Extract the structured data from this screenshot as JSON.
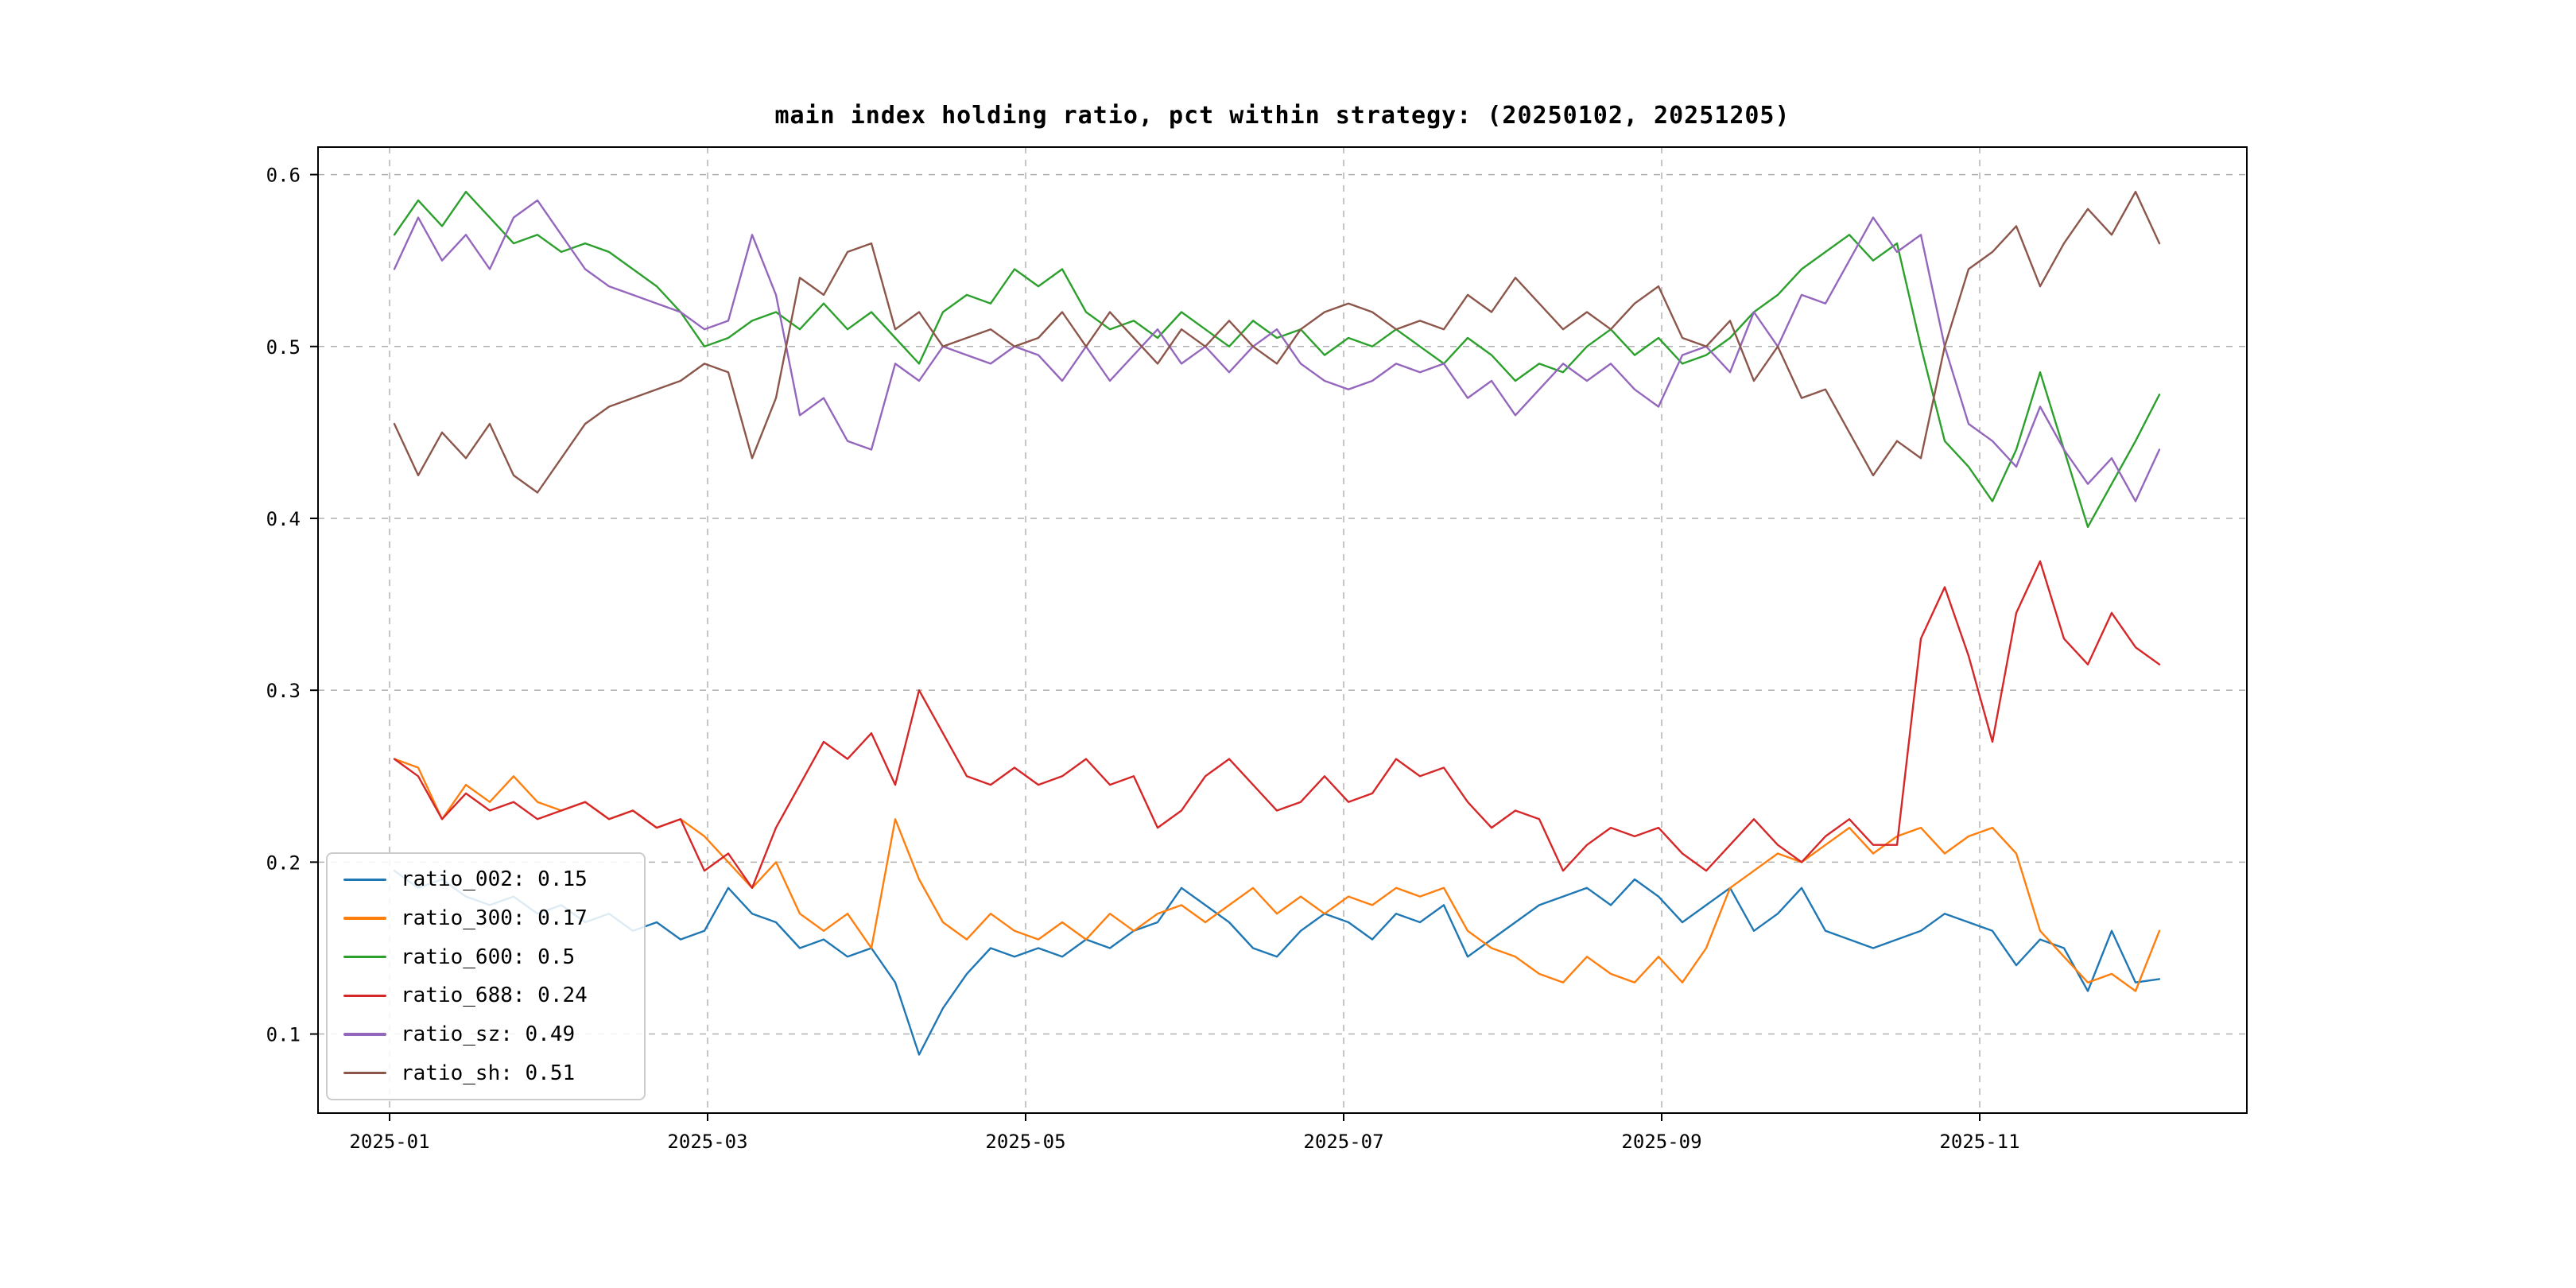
{
  "page": {
    "background": "#ffffff"
  },
  "chart_data": {
    "type": "line",
    "title": "main index holding ratio, pct within strategy: (20250102, 20251205)",
    "xlabel": "",
    "ylabel": "",
    "grid": {
      "show": true,
      "style": "dashed",
      "color": "#b0b0b0"
    },
    "legend_position": "lower-left",
    "xlim": [
      -0.45,
      11.68
    ],
    "ylim": [
      0.054,
      0.616
    ],
    "x_unit": "months since 2025-01-01",
    "x_ticks": [
      {
        "value": 0,
        "label": "2025-01"
      },
      {
        "value": 2,
        "label": "2025-03"
      },
      {
        "value": 4,
        "label": "2025-05"
      },
      {
        "value": 6,
        "label": "2025-07"
      },
      {
        "value": 8,
        "label": "2025-09"
      },
      {
        "value": 10,
        "label": "2025-11"
      }
    ],
    "y_ticks": [
      {
        "value": 0.1,
        "label": "0.1"
      },
      {
        "value": 0.2,
        "label": "0.2"
      },
      {
        "value": 0.3,
        "label": "0.3"
      },
      {
        "value": 0.4,
        "label": "0.4"
      },
      {
        "value": 0.5,
        "label": "0.5"
      },
      {
        "value": 0.6,
        "label": "0.6"
      }
    ],
    "x": [
      0.03,
      0.18,
      0.33,
      0.48,
      0.63,
      0.78,
      0.93,
      1.08,
      1.23,
      1.38,
      1.53,
      1.68,
      1.83,
      1.98,
      2.13,
      2.28,
      2.43,
      2.58,
      2.73,
      2.88,
      3.03,
      3.18,
      3.33,
      3.48,
      3.63,
      3.78,
      3.93,
      4.08,
      4.23,
      4.38,
      4.53,
      4.68,
      4.83,
      4.98,
      5.13,
      5.28,
      5.43,
      5.58,
      5.73,
      5.88,
      6.03,
      6.18,
      6.33,
      6.48,
      6.63,
      6.78,
      6.93,
      7.08,
      7.23,
      7.38,
      7.53,
      7.68,
      7.83,
      7.98,
      8.13,
      8.28,
      8.43,
      8.58,
      8.73,
      8.88,
      9.03,
      9.18,
      9.33,
      9.48,
      9.63,
      9.78,
      9.93,
      10.08,
      10.23,
      10.38,
      10.53,
      10.68,
      10.83,
      10.98,
      11.13
    ],
    "series": [
      {
        "name": "ratio_002",
        "legend_label": "ratio_002: 0.15",
        "color": "#1f77b4",
        "values": [
          0.195,
          0.185,
          0.19,
          0.18,
          0.175,
          0.18,
          0.17,
          0.175,
          0.165,
          0.17,
          0.16,
          0.165,
          0.155,
          0.16,
          0.185,
          0.17,
          0.165,
          0.15,
          0.155,
          0.145,
          0.15,
          0.13,
          0.088,
          0.115,
          0.135,
          0.15,
          0.145,
          0.15,
          0.145,
          0.155,
          0.15,
          0.16,
          0.165,
          0.185,
          0.175,
          0.165,
          0.15,
          0.145,
          0.16,
          0.17,
          0.165,
          0.155,
          0.17,
          0.165,
          0.175,
          0.145,
          0.155,
          0.165,
          0.175,
          0.18,
          0.185,
          0.175,
          0.19,
          0.18,
          0.165,
          0.175,
          0.185,
          0.16,
          0.17,
          0.185,
          0.16,
          0.155,
          0.15,
          0.155,
          0.16,
          0.17,
          0.165,
          0.16,
          0.14,
          0.155,
          0.15,
          0.125,
          0.16,
          0.13,
          0.132
        ]
      },
      {
        "name": "ratio_300",
        "legend_label": "ratio_300: 0.17",
        "color": "#ff7f0e",
        "values": [
          0.26,
          0.255,
          0.225,
          0.245,
          0.235,
          0.25,
          0.235,
          0.23,
          0.235,
          0.225,
          0.23,
          0.22,
          0.225,
          0.215,
          0.2,
          0.185,
          0.2,
          0.17,
          0.16,
          0.17,
          0.15,
          0.225,
          0.19,
          0.165,
          0.155,
          0.17,
          0.16,
          0.155,
          0.165,
          0.155,
          0.17,
          0.16,
          0.17,
          0.175,
          0.165,
          0.175,
          0.185,
          0.17,
          0.18,
          0.17,
          0.18,
          0.175,
          0.185,
          0.18,
          0.185,
          0.16,
          0.15,
          0.145,
          0.135,
          0.13,
          0.145,
          0.135,
          0.13,
          0.145,
          0.13,
          0.15,
          0.185,
          0.195,
          0.205,
          0.2,
          0.21,
          0.22,
          0.205,
          0.215,
          0.22,
          0.205,
          0.215,
          0.22,
          0.205,
          0.16,
          0.145,
          0.13,
          0.135,
          0.125,
          0.16
        ]
      },
      {
        "name": "ratio_600",
        "legend_label": "ratio_600: 0.5",
        "color": "#2ca02c",
        "values": [
          0.565,
          0.585,
          0.57,
          0.59,
          0.575,
          0.56,
          0.565,
          0.555,
          0.56,
          0.555,
          0.545,
          0.535,
          0.52,
          0.5,
          0.505,
          0.515,
          0.52,
          0.51,
          0.525,
          0.51,
          0.52,
          0.505,
          0.49,
          0.52,
          0.53,
          0.525,
          0.545,
          0.535,
          0.545,
          0.52,
          0.51,
          0.515,
          0.505,
          0.52,
          0.51,
          0.5,
          0.515,
          0.505,
          0.51,
          0.495,
          0.505,
          0.5,
          0.51,
          0.5,
          0.49,
          0.505,
          0.495,
          0.48,
          0.49,
          0.485,
          0.5,
          0.51,
          0.495,
          0.505,
          0.49,
          0.495,
          0.505,
          0.52,
          0.53,
          0.545,
          0.555,
          0.565,
          0.55,
          0.56,
          0.5,
          0.445,
          0.43,
          0.41,
          0.44,
          0.485,
          0.44,
          0.395,
          0.42,
          0.445,
          0.472
        ]
      },
      {
        "name": "ratio_688",
        "legend_label": "ratio_688: 0.24",
        "color": "#d62728",
        "values": [
          0.26,
          0.25,
          0.225,
          0.24,
          0.23,
          0.235,
          0.225,
          0.23,
          0.235,
          0.225,
          0.23,
          0.22,
          0.225,
          0.195,
          0.205,
          0.185,
          0.22,
          0.245,
          0.27,
          0.26,
          0.275,
          0.245,
          0.3,
          0.275,
          0.25,
          0.245,
          0.255,
          0.245,
          0.25,
          0.26,
          0.245,
          0.25,
          0.22,
          0.23,
          0.25,
          0.26,
          0.245,
          0.23,
          0.235,
          0.25,
          0.235,
          0.24,
          0.26,
          0.25,
          0.255,
          0.235,
          0.22,
          0.23,
          0.225,
          0.195,
          0.21,
          0.22,
          0.215,
          0.22,
          0.205,
          0.195,
          0.21,
          0.225,
          0.21,
          0.2,
          0.215,
          0.225,
          0.21,
          0.21,
          0.33,
          0.36,
          0.32,
          0.27,
          0.345,
          0.375,
          0.33,
          0.315,
          0.345,
          0.325,
          0.315
        ]
      },
      {
        "name": "ratio_sz",
        "legend_label": "ratio_sz: 0.49",
        "color": "#9467bd",
        "values": [
          0.545,
          0.575,
          0.55,
          0.565,
          0.545,
          0.575,
          0.585,
          0.565,
          0.545,
          0.535,
          0.53,
          0.525,
          0.52,
          0.51,
          0.515,
          0.565,
          0.53,
          0.46,
          0.47,
          0.445,
          0.44,
          0.49,
          0.48,
          0.5,
          0.495,
          0.49,
          0.5,
          0.495,
          0.48,
          0.5,
          0.48,
          0.495,
          0.51,
          0.49,
          0.5,
          0.485,
          0.5,
          0.51,
          0.49,
          0.48,
          0.475,
          0.48,
          0.49,
          0.485,
          0.49,
          0.47,
          0.48,
          0.46,
          0.475,
          0.49,
          0.48,
          0.49,
          0.475,
          0.465,
          0.495,
          0.5,
          0.485,
          0.52,
          0.5,
          0.53,
          0.525,
          0.55,
          0.575,
          0.555,
          0.565,
          0.5,
          0.455,
          0.445,
          0.43,
          0.465,
          0.44,
          0.42,
          0.435,
          0.41,
          0.44
        ]
      },
      {
        "name": "ratio_sh",
        "legend_label": "ratio_sh: 0.51",
        "color": "#8c564b",
        "values": [
          0.455,
          0.425,
          0.45,
          0.435,
          0.455,
          0.425,
          0.415,
          0.435,
          0.455,
          0.465,
          0.47,
          0.475,
          0.48,
          0.49,
          0.485,
          0.435,
          0.47,
          0.54,
          0.53,
          0.555,
          0.56,
          0.51,
          0.52,
          0.5,
          0.505,
          0.51,
          0.5,
          0.505,
          0.52,
          0.5,
          0.52,
          0.505,
          0.49,
          0.51,
          0.5,
          0.515,
          0.5,
          0.49,
          0.51,
          0.52,
          0.525,
          0.52,
          0.51,
          0.515,
          0.51,
          0.53,
          0.52,
          0.54,
          0.525,
          0.51,
          0.52,
          0.51,
          0.525,
          0.535,
          0.505,
          0.5,
          0.515,
          0.48,
          0.5,
          0.47,
          0.475,
          0.45,
          0.425,
          0.445,
          0.435,
          0.5,
          0.545,
          0.555,
          0.57,
          0.535,
          0.56,
          0.58,
          0.565,
          0.59,
          0.56
        ]
      }
    ]
  }
}
